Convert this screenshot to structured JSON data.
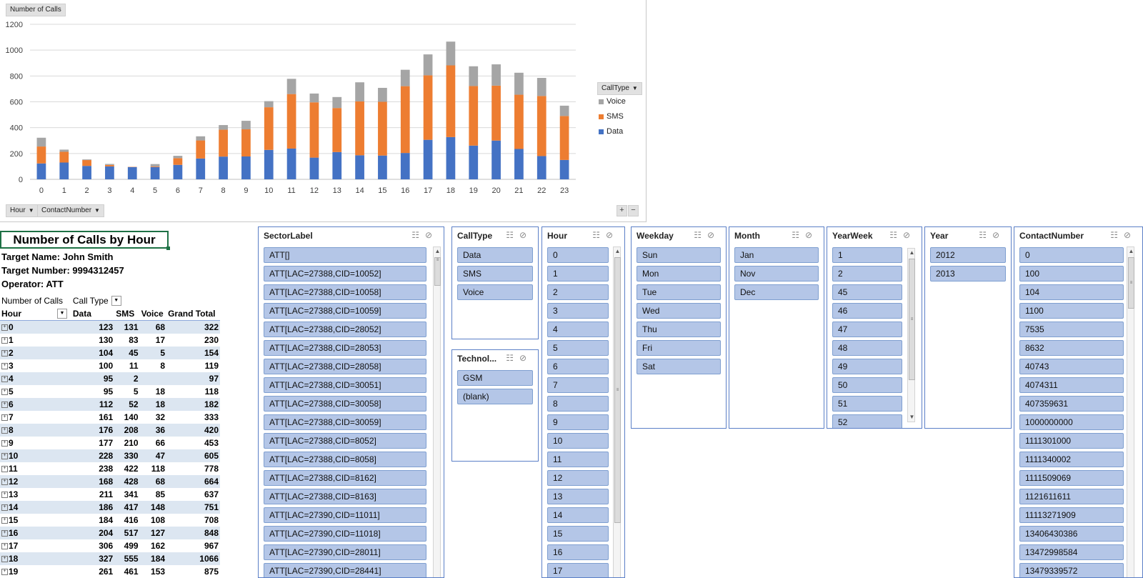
{
  "chart": {
    "title_button": "Number of Calls",
    "axis_buttons": [
      "Hour",
      "ContactNumber"
    ],
    "legend_title": "CallType",
    "legend": [
      {
        "name": "Voice",
        "color": "#a5a5a5"
      },
      {
        "name": "SMS",
        "color": "#ed7d31"
      },
      {
        "name": "Data",
        "color": "#4472c4"
      }
    ],
    "zoom_buttons": [
      "+",
      "−"
    ]
  },
  "chart_data": {
    "type": "bar",
    "stacked": true,
    "categories": [
      "0",
      "1",
      "2",
      "3",
      "4",
      "5",
      "6",
      "7",
      "8",
      "9",
      "10",
      "11",
      "12",
      "13",
      "14",
      "15",
      "16",
      "17",
      "18",
      "19",
      "20",
      "21",
      "22",
      "23"
    ],
    "series": [
      {
        "name": "Data",
        "color": "#4472c4",
        "values": [
          123,
          130,
          104,
          100,
          95,
          95,
          112,
          161,
          176,
          177,
          228,
          238,
          168,
          211,
          186,
          184,
          204,
          306,
          327,
          261,
          300,
          235,
          180,
          150
        ]
      },
      {
        "name": "SMS",
        "color": "#ed7d31",
        "values": [
          131,
          83,
          45,
          11,
          2,
          5,
          52,
          140,
          208,
          210,
          330,
          422,
          428,
          341,
          417,
          416,
          517,
          499,
          555,
          461,
          425,
          420,
          465,
          340
        ]
      },
      {
        "name": "Voice",
        "color": "#a5a5a5",
        "values": [
          68,
          17,
          5,
          8,
          0,
          18,
          18,
          32,
          36,
          66,
          47,
          118,
          68,
          85,
          148,
          108,
          127,
          162,
          184,
          153,
          165,
          170,
          140,
          80
        ]
      }
    ],
    "yticks": [
      "0",
      "200",
      "400",
      "600",
      "800",
      "1000",
      "1200"
    ],
    "ylim": [
      0,
      1200
    ],
    "grid": true,
    "legend_position": "right"
  },
  "report": {
    "title": "Number of Calls by Hour",
    "target_name": "Target Name: John Smith",
    "target_number": "Target Number: 9994312457",
    "operator": "Operator: ATT"
  },
  "pivot": {
    "header1": [
      "Number of Calls",
      "Call Type"
    ],
    "header2": [
      "Hour",
      "Data",
      "SMS",
      "Voice",
      "Grand Total"
    ],
    "rows": [
      {
        "hour": "0",
        "data": "123",
        "sms": "131",
        "voice": "68",
        "total": "322"
      },
      {
        "hour": "1",
        "data": "130",
        "sms": "83",
        "voice": "17",
        "total": "230"
      },
      {
        "hour": "2",
        "data": "104",
        "sms": "45",
        "voice": "5",
        "total": "154"
      },
      {
        "hour": "3",
        "data": "100",
        "sms": "11",
        "voice": "8",
        "total": "119"
      },
      {
        "hour": "4",
        "data": "95",
        "sms": "2",
        "voice": "",
        "total": "97"
      },
      {
        "hour": "5",
        "data": "95",
        "sms": "5",
        "voice": "18",
        "total": "118"
      },
      {
        "hour": "6",
        "data": "112",
        "sms": "52",
        "voice": "18",
        "total": "182"
      },
      {
        "hour": "7",
        "data": "161",
        "sms": "140",
        "voice": "32",
        "total": "333"
      },
      {
        "hour": "8",
        "data": "176",
        "sms": "208",
        "voice": "36",
        "total": "420"
      },
      {
        "hour": "9",
        "data": "177",
        "sms": "210",
        "voice": "66",
        "total": "453"
      },
      {
        "hour": "10",
        "data": "228",
        "sms": "330",
        "voice": "47",
        "total": "605"
      },
      {
        "hour": "11",
        "data": "238",
        "sms": "422",
        "voice": "118",
        "total": "778"
      },
      {
        "hour": "12",
        "data": "168",
        "sms": "428",
        "voice": "68",
        "total": "664"
      },
      {
        "hour": "13",
        "data": "211",
        "sms": "341",
        "voice": "85",
        "total": "637"
      },
      {
        "hour": "14",
        "data": "186",
        "sms": "417",
        "voice": "148",
        "total": "751"
      },
      {
        "hour": "15",
        "data": "184",
        "sms": "416",
        "voice": "108",
        "total": "708"
      },
      {
        "hour": "16",
        "data": "204",
        "sms": "517",
        "voice": "127",
        "total": "848"
      },
      {
        "hour": "17",
        "data": "306",
        "sms": "499",
        "voice": "162",
        "total": "967"
      },
      {
        "hour": "18",
        "data": "327",
        "sms": "555",
        "voice": "184",
        "total": "1066"
      },
      {
        "hour": "19",
        "data": "261",
        "sms": "461",
        "voice": "153",
        "total": "875"
      }
    ]
  },
  "slicers": {
    "sector": {
      "title": "SectorLabel",
      "items": [
        "ATT[]",
        "ATT[LAC=27388,CID=10052]",
        "ATT[LAC=27388,CID=10058]",
        "ATT[LAC=27388,CID=10059]",
        "ATT[LAC=27388,CID=28052]",
        "ATT[LAC=27388,CID=28053]",
        "ATT[LAC=27388,CID=28058]",
        "ATT[LAC=27388,CID=30051]",
        "ATT[LAC=27388,CID=30058]",
        "ATT[LAC=27388,CID=30059]",
        "ATT[LAC=27388,CID=8052]",
        "ATT[LAC=27388,CID=8058]",
        "ATT[LAC=27388,CID=8162]",
        "ATT[LAC=27388,CID=8163]",
        "ATT[LAC=27390,CID=11011]",
        "ATT[LAC=27390,CID=11018]",
        "ATT[LAC=27390,CID=28011]",
        "ATT[LAC=27390,CID=28441]"
      ]
    },
    "calltype": {
      "title": "CallType",
      "items": [
        "Data",
        "SMS",
        "Voice"
      ]
    },
    "technology": {
      "title": "Technol...",
      "items": [
        "GSM",
        "(blank)"
      ]
    },
    "hour": {
      "title": "Hour",
      "items": [
        "0",
        "1",
        "2",
        "3",
        "4",
        "5",
        "6",
        "7",
        "8",
        "9",
        "10",
        "11",
        "12",
        "13",
        "14",
        "15",
        "16",
        "17"
      ]
    },
    "weekday": {
      "title": "Weekday",
      "items": [
        "Sun",
        "Mon",
        "Tue",
        "Wed",
        "Thu",
        "Fri",
        "Sat"
      ]
    },
    "month": {
      "title": "Month",
      "items": [
        "Jan",
        "Nov",
        "Dec"
      ]
    },
    "yearweek": {
      "title": "YearWeek",
      "items": [
        "1",
        "2",
        "45",
        "46",
        "47",
        "48",
        "49",
        "50",
        "51",
        "52"
      ]
    },
    "year": {
      "title": "Year",
      "items": [
        "2012",
        "2013"
      ]
    },
    "contact": {
      "title": "ContactNumber",
      "items": [
        "0",
        "100",
        "104",
        "1100",
        "7535",
        "8632",
        "40743",
        "4074311",
        "407359631",
        "1000000000",
        "1111301000",
        "1111340002",
        "1111509069",
        "1121611611",
        "11113271909",
        "13406430386",
        "13472998584",
        "13479339572"
      ]
    }
  }
}
